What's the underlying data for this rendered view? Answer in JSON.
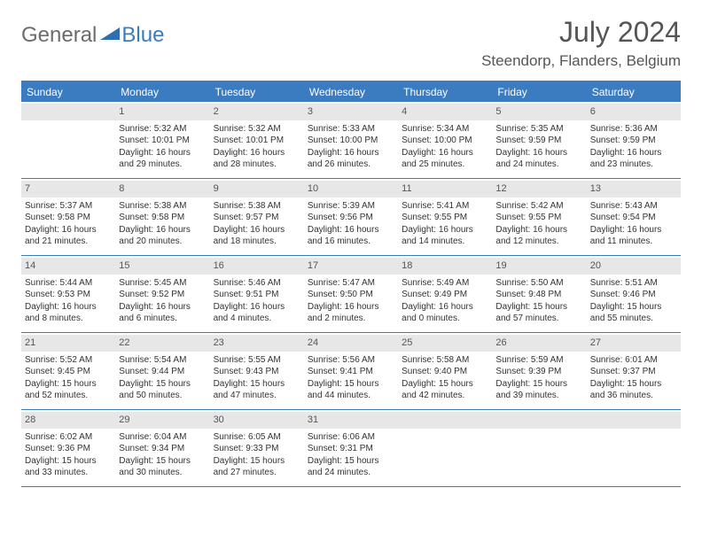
{
  "brand": {
    "general": "General",
    "blue": "Blue"
  },
  "title": "July 2024",
  "location": "Steendorp, Flanders, Belgium",
  "colors": {
    "accent": "#3b7bbf",
    "daynum_bg": "#e7e7e7",
    "text": "#333333",
    "muted": "#555555",
    "white": "#ffffff"
  },
  "weekdays": [
    "Sunday",
    "Monday",
    "Tuesday",
    "Wednesday",
    "Thursday",
    "Friday",
    "Saturday"
  ],
  "weeks": [
    [
      {
        "n": "",
        "sunrise": "",
        "sunset": "",
        "day1": "",
        "day2": ""
      },
      {
        "n": "1",
        "sunrise": "Sunrise: 5:32 AM",
        "sunset": "Sunset: 10:01 PM",
        "day1": "Daylight: 16 hours",
        "day2": "and 29 minutes."
      },
      {
        "n": "2",
        "sunrise": "Sunrise: 5:32 AM",
        "sunset": "Sunset: 10:01 PM",
        "day1": "Daylight: 16 hours",
        "day2": "and 28 minutes."
      },
      {
        "n": "3",
        "sunrise": "Sunrise: 5:33 AM",
        "sunset": "Sunset: 10:00 PM",
        "day1": "Daylight: 16 hours",
        "day2": "and 26 minutes."
      },
      {
        "n": "4",
        "sunrise": "Sunrise: 5:34 AM",
        "sunset": "Sunset: 10:00 PM",
        "day1": "Daylight: 16 hours",
        "day2": "and 25 minutes."
      },
      {
        "n": "5",
        "sunrise": "Sunrise: 5:35 AM",
        "sunset": "Sunset: 9:59 PM",
        "day1": "Daylight: 16 hours",
        "day2": "and 24 minutes."
      },
      {
        "n": "6",
        "sunrise": "Sunrise: 5:36 AM",
        "sunset": "Sunset: 9:59 PM",
        "day1": "Daylight: 16 hours",
        "day2": "and 23 minutes."
      }
    ],
    [
      {
        "n": "7",
        "sunrise": "Sunrise: 5:37 AM",
        "sunset": "Sunset: 9:58 PM",
        "day1": "Daylight: 16 hours",
        "day2": "and 21 minutes."
      },
      {
        "n": "8",
        "sunrise": "Sunrise: 5:38 AM",
        "sunset": "Sunset: 9:58 PM",
        "day1": "Daylight: 16 hours",
        "day2": "and 20 minutes."
      },
      {
        "n": "9",
        "sunrise": "Sunrise: 5:38 AM",
        "sunset": "Sunset: 9:57 PM",
        "day1": "Daylight: 16 hours",
        "day2": "and 18 minutes."
      },
      {
        "n": "10",
        "sunrise": "Sunrise: 5:39 AM",
        "sunset": "Sunset: 9:56 PM",
        "day1": "Daylight: 16 hours",
        "day2": "and 16 minutes."
      },
      {
        "n": "11",
        "sunrise": "Sunrise: 5:41 AM",
        "sunset": "Sunset: 9:55 PM",
        "day1": "Daylight: 16 hours",
        "day2": "and 14 minutes."
      },
      {
        "n": "12",
        "sunrise": "Sunrise: 5:42 AM",
        "sunset": "Sunset: 9:55 PM",
        "day1": "Daylight: 16 hours",
        "day2": "and 12 minutes."
      },
      {
        "n": "13",
        "sunrise": "Sunrise: 5:43 AM",
        "sunset": "Sunset: 9:54 PM",
        "day1": "Daylight: 16 hours",
        "day2": "and 11 minutes."
      }
    ],
    [
      {
        "n": "14",
        "sunrise": "Sunrise: 5:44 AM",
        "sunset": "Sunset: 9:53 PM",
        "day1": "Daylight: 16 hours",
        "day2": "and 8 minutes."
      },
      {
        "n": "15",
        "sunrise": "Sunrise: 5:45 AM",
        "sunset": "Sunset: 9:52 PM",
        "day1": "Daylight: 16 hours",
        "day2": "and 6 minutes."
      },
      {
        "n": "16",
        "sunrise": "Sunrise: 5:46 AM",
        "sunset": "Sunset: 9:51 PM",
        "day1": "Daylight: 16 hours",
        "day2": "and 4 minutes."
      },
      {
        "n": "17",
        "sunrise": "Sunrise: 5:47 AM",
        "sunset": "Sunset: 9:50 PM",
        "day1": "Daylight: 16 hours",
        "day2": "and 2 minutes."
      },
      {
        "n": "18",
        "sunrise": "Sunrise: 5:49 AM",
        "sunset": "Sunset: 9:49 PM",
        "day1": "Daylight: 16 hours",
        "day2": "and 0 minutes."
      },
      {
        "n": "19",
        "sunrise": "Sunrise: 5:50 AM",
        "sunset": "Sunset: 9:48 PM",
        "day1": "Daylight: 15 hours",
        "day2": "and 57 minutes."
      },
      {
        "n": "20",
        "sunrise": "Sunrise: 5:51 AM",
        "sunset": "Sunset: 9:46 PM",
        "day1": "Daylight: 15 hours",
        "day2": "and 55 minutes."
      }
    ],
    [
      {
        "n": "21",
        "sunrise": "Sunrise: 5:52 AM",
        "sunset": "Sunset: 9:45 PM",
        "day1": "Daylight: 15 hours",
        "day2": "and 52 minutes."
      },
      {
        "n": "22",
        "sunrise": "Sunrise: 5:54 AM",
        "sunset": "Sunset: 9:44 PM",
        "day1": "Daylight: 15 hours",
        "day2": "and 50 minutes."
      },
      {
        "n": "23",
        "sunrise": "Sunrise: 5:55 AM",
        "sunset": "Sunset: 9:43 PM",
        "day1": "Daylight: 15 hours",
        "day2": "and 47 minutes."
      },
      {
        "n": "24",
        "sunrise": "Sunrise: 5:56 AM",
        "sunset": "Sunset: 9:41 PM",
        "day1": "Daylight: 15 hours",
        "day2": "and 44 minutes."
      },
      {
        "n": "25",
        "sunrise": "Sunrise: 5:58 AM",
        "sunset": "Sunset: 9:40 PM",
        "day1": "Daylight: 15 hours",
        "day2": "and 42 minutes."
      },
      {
        "n": "26",
        "sunrise": "Sunrise: 5:59 AM",
        "sunset": "Sunset: 9:39 PM",
        "day1": "Daylight: 15 hours",
        "day2": "and 39 minutes."
      },
      {
        "n": "27",
        "sunrise": "Sunrise: 6:01 AM",
        "sunset": "Sunset: 9:37 PM",
        "day1": "Daylight: 15 hours",
        "day2": "and 36 minutes."
      }
    ],
    [
      {
        "n": "28",
        "sunrise": "Sunrise: 6:02 AM",
        "sunset": "Sunset: 9:36 PM",
        "day1": "Daylight: 15 hours",
        "day2": "and 33 minutes."
      },
      {
        "n": "29",
        "sunrise": "Sunrise: 6:04 AM",
        "sunset": "Sunset: 9:34 PM",
        "day1": "Daylight: 15 hours",
        "day2": "and 30 minutes."
      },
      {
        "n": "30",
        "sunrise": "Sunrise: 6:05 AM",
        "sunset": "Sunset: 9:33 PM",
        "day1": "Daylight: 15 hours",
        "day2": "and 27 minutes."
      },
      {
        "n": "31",
        "sunrise": "Sunrise: 6:06 AM",
        "sunset": "Sunset: 9:31 PM",
        "day1": "Daylight: 15 hours",
        "day2": "and 24 minutes."
      },
      {
        "n": "",
        "sunrise": "",
        "sunset": "",
        "day1": "",
        "day2": ""
      },
      {
        "n": "",
        "sunrise": "",
        "sunset": "",
        "day1": "",
        "day2": ""
      },
      {
        "n": "",
        "sunrise": "",
        "sunset": "",
        "day1": "",
        "day2": ""
      }
    ]
  ]
}
